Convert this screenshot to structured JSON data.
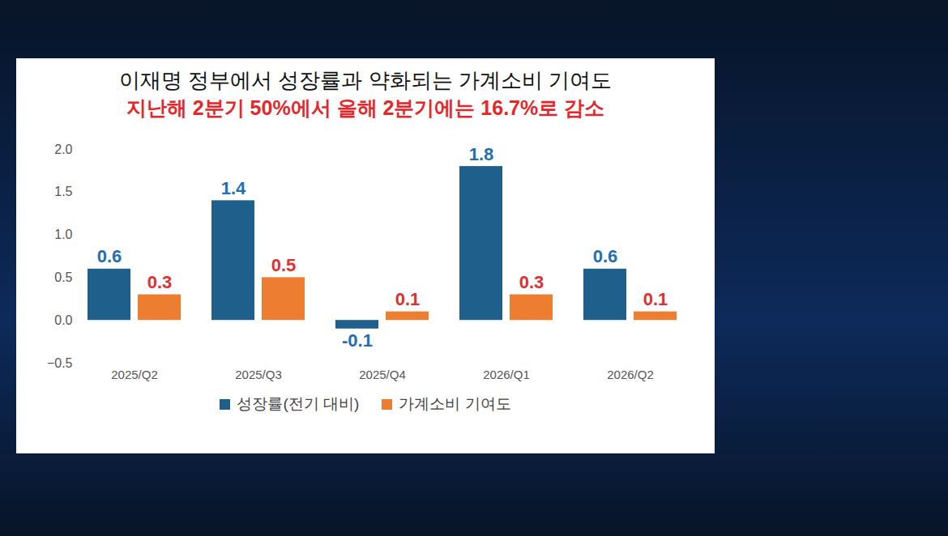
{
  "chart_data": {
    "type": "bar",
    "title": "이재명 정부에서 성장률과 약화되는 가계소비 기여도",
    "subtitle": "지난해 2분기 50%에서 올해 2분기에는 16.7%로 감소",
    "categories": [
      "2025/Q2",
      "2025/Q3",
      "2025/Q4",
      "2026/Q1",
      "2026/Q2"
    ],
    "series": [
      {
        "name": "성장률(전기 대비)",
        "color": "#1f5f8b",
        "values": [
          0.6,
          1.4,
          -0.1,
          1.8,
          0.6
        ]
      },
      {
        "name": "가계소비 기여도",
        "color": "#ed7d31",
        "values": [
          0.3,
          0.5,
          0.1,
          0.3,
          0.1
        ]
      }
    ],
    "ylim": [
      -0.5,
      2
    ],
    "yticks": [
      -0.5,
      0,
      0.5,
      1,
      1.5,
      2
    ],
    "grid": false,
    "legend": "bottom",
    "data_labels": true
  }
}
